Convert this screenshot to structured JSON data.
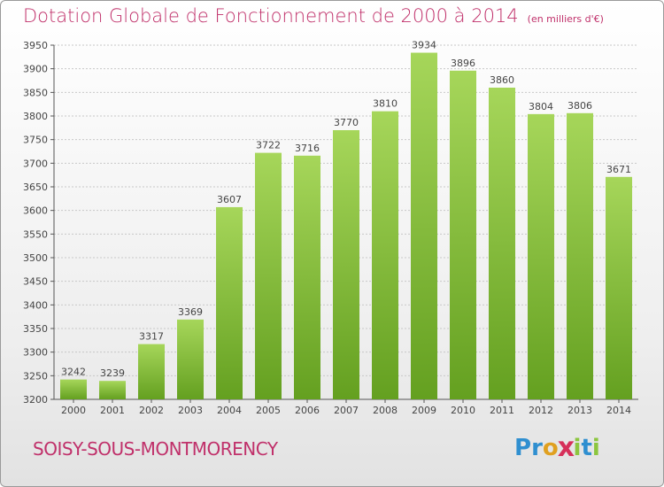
{
  "title": "Dotation Globale de Fonctionnement de 2000 à 2014",
  "unit_note": "(en milliers d'€)",
  "commune": "SOISY-SOUS-MONTMORENCY",
  "logo": {
    "letters": [
      "P",
      "r",
      "o",
      "x",
      "i",
      "t",
      "i"
    ],
    "colors": [
      "#2f8fd0",
      "#2f8fd0",
      "#e0a020",
      "#d6305a",
      "#8cc63f",
      "#2f8fd0",
      "#8cc63f"
    ]
  },
  "colors": {
    "bar_light": "#a6d65a",
    "bar_dark": "#64a020",
    "title": "#c0306a",
    "grid": "#c8c8c8"
  },
  "chart_data": {
    "type": "bar",
    "title": "Dotation Globale de Fonctionnement de 2000 à 2014",
    "categories": [
      "2000",
      "2001",
      "2002",
      "2003",
      "2004",
      "2005",
      "2006",
      "2007",
      "2008",
      "2009",
      "2010",
      "2011",
      "2012",
      "2013",
      "2014"
    ],
    "values": [
      3242,
      3239,
      3317,
      3369,
      3607,
      3722,
      3716,
      3770,
      3810,
      3934,
      3896,
      3860,
      3804,
      3806,
      3671
    ],
    "ylim": [
      3200,
      3950
    ],
    "yticks": [
      3200,
      3250,
      3300,
      3350,
      3400,
      3450,
      3500,
      3550,
      3600,
      3650,
      3700,
      3750,
      3800,
      3850,
      3900,
      3950
    ],
    "grid": true,
    "legend": "none",
    "xlabel": "",
    "ylabel": ""
  }
}
